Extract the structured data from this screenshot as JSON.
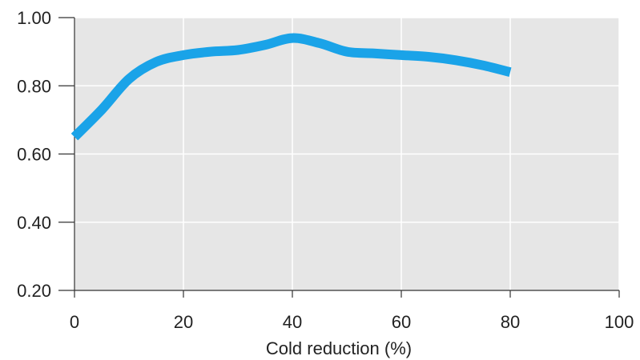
{
  "chart_data": {
    "type": "line",
    "xlabel": "Cold reduction (%)",
    "ylabel": "",
    "xlim": [
      0,
      100
    ],
    "ylim": [
      0.2,
      1.0
    ],
    "x_ticks": [
      0,
      20,
      40,
      60,
      80,
      100
    ],
    "x_tick_labels": [
      "0",
      "20",
      "40",
      "60",
      "80",
      "100"
    ],
    "y_ticks": [
      0.2,
      0.4,
      0.6,
      0.8,
      1.0
    ],
    "y_tick_labels": [
      "0.20",
      "0.40",
      "0.60",
      "0.80",
      "1.00"
    ],
    "grid": true,
    "series": [
      {
        "color": "#1aa3e8",
        "x": [
          0,
          5,
          10,
          15,
          20,
          25,
          30,
          35,
          40,
          45,
          50,
          55,
          60,
          65,
          70,
          75,
          80
        ],
        "y": [
          0.65,
          0.73,
          0.82,
          0.87,
          0.89,
          0.9,
          0.905,
          0.92,
          0.94,
          0.925,
          0.9,
          0.895,
          0.89,
          0.885,
          0.875,
          0.86,
          0.84
        ]
      }
    ]
  },
  "colors": {
    "plot_background": "#e6e6e6",
    "grid": "#ffffff",
    "axis": "#333333",
    "line": "#1aa3e8"
  }
}
